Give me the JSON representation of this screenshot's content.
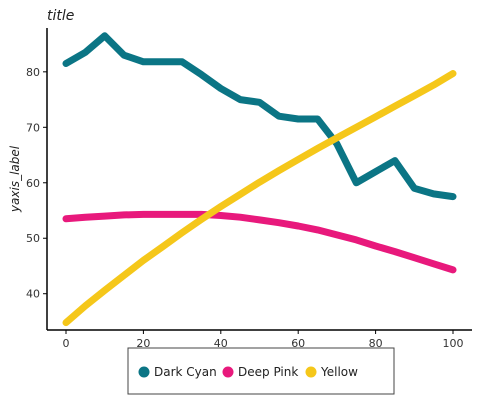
{
  "chart_data": {
    "type": "line",
    "title": "title",
    "xlabel": "xaxis_label",
    "ylabel": "yaxis_label",
    "xlim": [
      0,
      100
    ],
    "ylim": [
      34,
      87
    ],
    "x_ticks": [
      0,
      20,
      40,
      60,
      80,
      100
    ],
    "y_ticks": [
      40,
      50,
      60,
      70,
      80
    ],
    "grid": false,
    "legend_position": "bottom",
    "series": [
      {
        "name": "Dark Cyan",
        "color": "#0b7585",
        "x": [
          0,
          5,
          10,
          15,
          20,
          25,
          30,
          35,
          40,
          45,
          50,
          55,
          60,
          65,
          70,
          75,
          80,
          85,
          90,
          95,
          100
        ],
        "y": [
          81.5,
          83.5,
          86.5,
          83,
          81.8,
          81.8,
          81.8,
          79.5,
          77,
          75,
          74.5,
          72,
          71.5,
          71.5,
          67,
          60,
          62,
          64,
          59,
          58,
          57.5
        ]
      },
      {
        "name": "Deep Pink",
        "color": "#e8197c",
        "x": [
          0,
          5,
          10,
          15,
          20,
          25,
          30,
          35,
          40,
          45,
          50,
          55,
          60,
          65,
          70,
          75,
          80,
          85,
          90,
          95,
          100
        ],
        "y": [
          53.5,
          53.8,
          54,
          54.2,
          54.3,
          54.3,
          54.3,
          54.3,
          54.1,
          53.8,
          53.3,
          52.8,
          52.2,
          51.5,
          50.6,
          49.7,
          48.6,
          47.6,
          46.5,
          45.4,
          44.3
        ]
      },
      {
        "name": "Yellow",
        "color": "#f5c71a",
        "x": [
          0,
          5,
          10,
          15,
          20,
          25,
          30,
          35,
          40,
          45,
          50,
          55,
          60,
          65,
          70,
          75,
          80,
          85,
          90,
          95,
          100
        ],
        "y": [
          34.8,
          37.8,
          40.6,
          43.3,
          46,
          48.5,
          51,
          53.4,
          55.7,
          57.9,
          60.1,
          62.2,
          64.2,
          66.2,
          68.1,
          70,
          71.9,
          73.8,
          75.7,
          77.6,
          79.7
        ]
      }
    ]
  }
}
